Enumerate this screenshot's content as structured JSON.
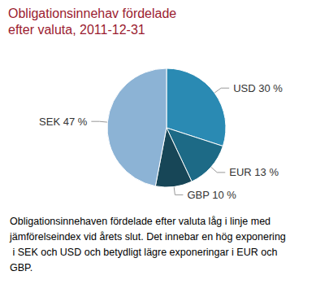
{
  "chart_data": {
    "type": "pie",
    "title": "Obligationsinnehav fördelade efter valuta, 2011-12-31",
    "categories": [
      "USD",
      "EUR",
      "GBP",
      "SEK"
    ],
    "values": [
      30,
      13,
      10,
      47
    ],
    "value_labels": [
      "USD 30 %",
      "EUR 13 %",
      "GBP 10 %",
      "SEK 47 %"
    ],
    "colors": [
      "#2a8ab3",
      "#1d6a86",
      "#174657",
      "#8cb3d5"
    ],
    "data_labels": true,
    "annotation": "Obligationsinnehaven fördelade efter valuta låg i linje med jämförelseindex vid årets slut. Det innebar en hög exponering i SEK och USD och betydligt lägre exponeringar i EUR och GBP."
  }
}
